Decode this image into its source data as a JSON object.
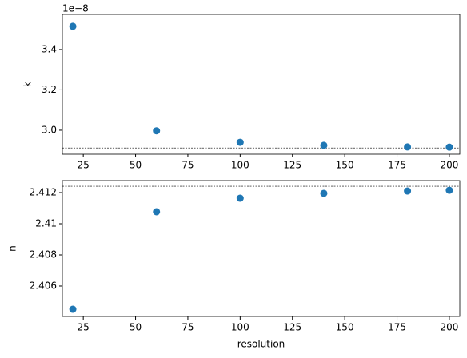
{
  "chart_data": [
    {
      "type": "scatter",
      "ylabel": "k",
      "offset_text": "1e−8",
      "x": [
        20,
        60,
        100,
        140,
        180,
        200
      ],
      "series": [
        {
          "color": "#1f77b4",
          "values": [
            3.515,
            2.997,
            2.94,
            2.925,
            2.917,
            2.916
          ]
        }
      ],
      "reference_line": 2.912,
      "xlim": [
        15,
        205
      ],
      "xticks": [
        25,
        50,
        75,
        100,
        125,
        150,
        175,
        200
      ],
      "ylim": [
        2.881,
        3.574
      ],
      "yticks": [
        {
          "value": 3,
          "label": "3.0"
        },
        3.2,
        3.4
      ]
    },
    {
      "type": "scatter",
      "ylabel": "n",
      "xlabel": "resolution",
      "x": [
        20,
        60,
        100,
        140,
        180,
        200
      ],
      "series": [
        {
          "color": "#1f77b4",
          "values": [
            2.40451,
            2.41077,
            2.41164,
            2.41195,
            2.4121,
            2.41215
          ]
        }
      ],
      "reference_line": 2.41241,
      "xlim": [
        15,
        205
      ],
      "xticks": [
        25,
        50,
        75,
        100,
        125,
        150,
        175,
        200
      ],
      "ylim": [
        2.40405,
        2.41277
      ],
      "yticks": [
        2.406,
        2.408,
        2.41,
        2.412
      ]
    }
  ]
}
